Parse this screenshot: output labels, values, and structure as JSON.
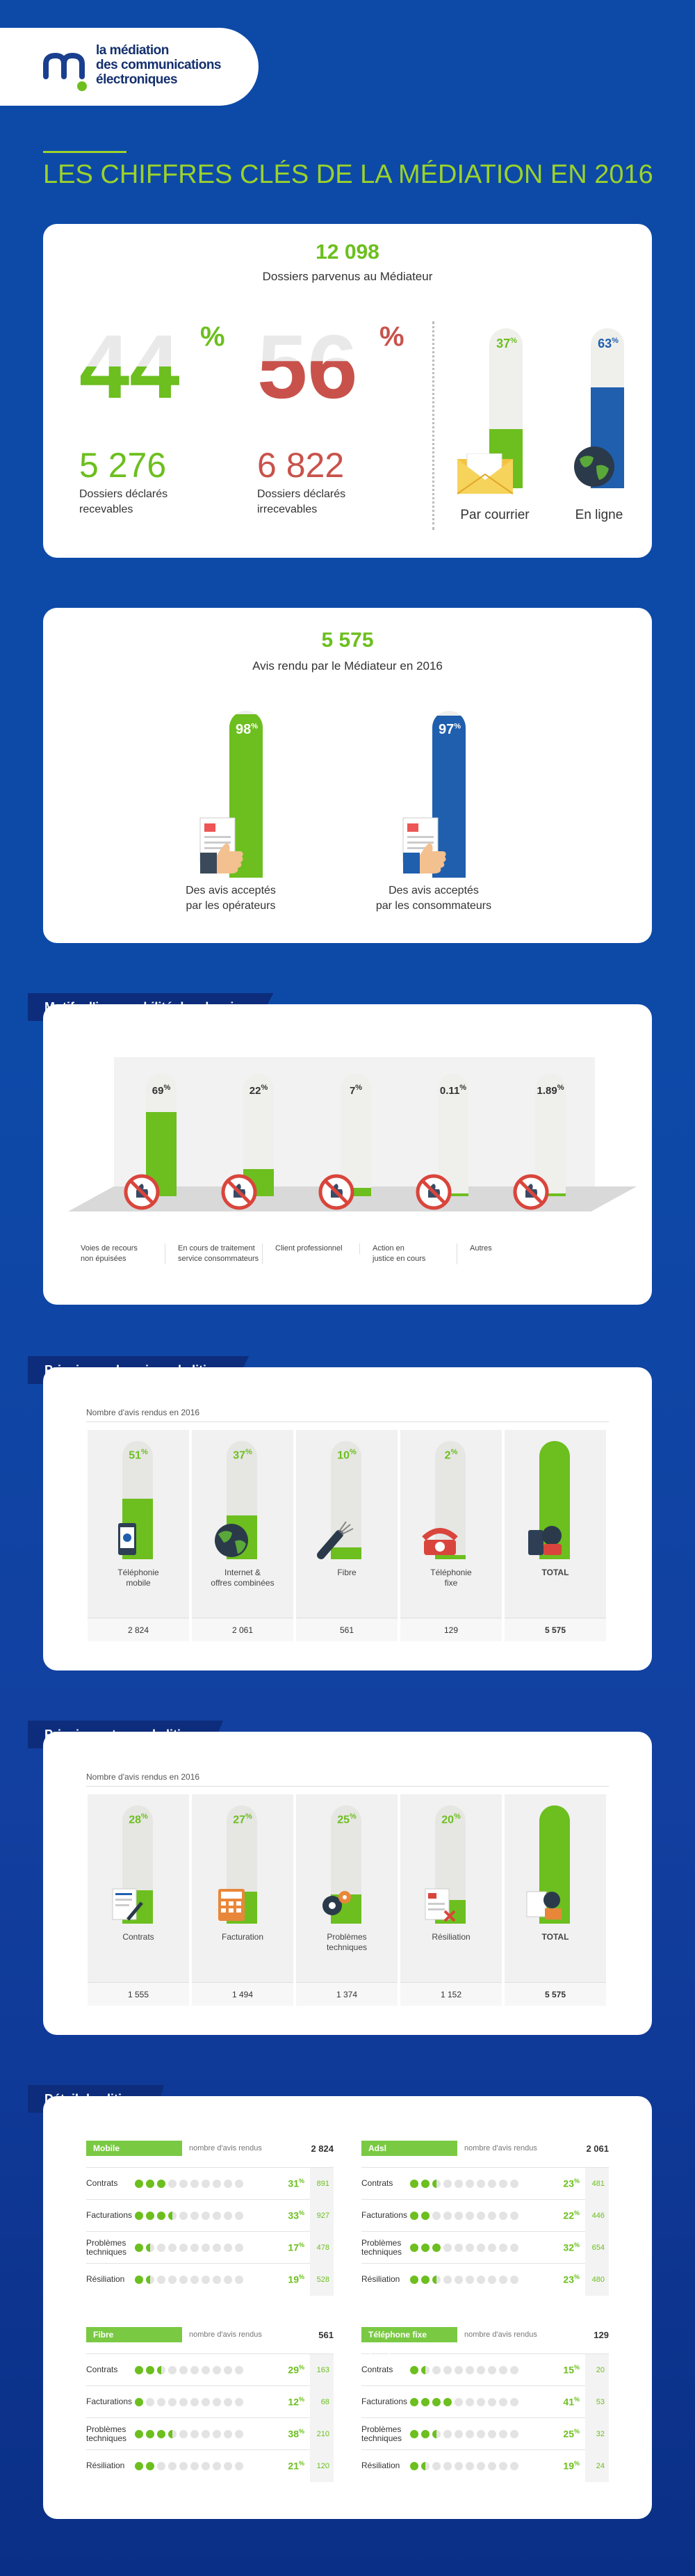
{
  "logo": {
    "lines": [
      "la médiation",
      "des communications",
      "électroniques"
    ]
  },
  "title": "LES CHIFFRES CLÉS DE LA MÉDIATION EN 2016",
  "card1": {
    "total": "12 098",
    "total_label": "Dossiers parvenus au Médiateur",
    "left_pct": "44",
    "left_count": "5 276",
    "left_label": [
      "Dossiers déclarés",
      "recevables"
    ],
    "right_pct": "56",
    "right_count": "6 822",
    "right_label": [
      "Dossiers déclarés",
      "irrecevables"
    ],
    "channels": [
      {
        "label": "Par courrier",
        "pct": "37",
        "value": 0.37,
        "icon": "mail-icon"
      },
      {
        "label": "En ligne",
        "pct": "63",
        "value": 0.63,
        "icon": "globe-icon"
      }
    ]
  },
  "card2": {
    "total": "5 575",
    "total_label": "Avis rendu par le Médiateur en 2016",
    "items": [
      {
        "pct": "98",
        "value": 0.98,
        "label": [
          "Des avis acceptés",
          "par les opérateurs"
        ],
        "color": "#6cbf1e"
      },
      {
        "pct": "97",
        "value": 0.97,
        "label": [
          "Des avis acceptés",
          "par les consommateurs"
        ],
        "color": "#1f5fae"
      }
    ]
  },
  "section_irrecevabilite": {
    "ribbon": "Motifs d'irrecevabilité des dossiers",
    "items": [
      {
        "pct": "69",
        "value": 0.69,
        "label": [
          "Voies de recours",
          "non épuisées"
        ]
      },
      {
        "pct": "22",
        "value": 0.22,
        "label": [
          "En cours de traitement",
          "service consommateurs"
        ]
      },
      {
        "pct": "7",
        "value": 0.07,
        "label": [
          "Client professionnel"
        ]
      },
      {
        "pct": "0.11",
        "value": 0.0011,
        "label": [
          "Action en",
          "justice en cours"
        ]
      },
      {
        "pct": "1.89",
        "value": 0.0189,
        "label": [
          "Autres"
        ]
      }
    ]
  },
  "section_domaines": {
    "ribbon": "Principaux domaines de litiges",
    "subtitle": "Nombre d'avis rendus en 2016",
    "items": [
      {
        "pct": "51",
        "value": 0.51,
        "label": [
          "Téléphonie",
          "mobile"
        ],
        "count": "2 824",
        "icon": "mobile-phone-icon"
      },
      {
        "pct": "37",
        "value": 0.37,
        "label": [
          "Internet &",
          "offres combinées"
        ],
        "count": "2 061",
        "icon": "globe-icon"
      },
      {
        "pct": "10",
        "value": 0.1,
        "label": [
          "Fibre"
        ],
        "count": "561",
        "icon": "fiber-cable-icon"
      },
      {
        "pct": "2",
        "value": 0.02,
        "label": [
          "Téléphonie",
          "fixe"
        ],
        "count": "129",
        "icon": "landline-phone-icon"
      },
      {
        "pct": "100",
        "value": 1.0,
        "label": [
          "TOTAL"
        ],
        "count": "5 575",
        "icon": "devices-icon"
      }
    ]
  },
  "section_types": {
    "ribbon": "Principaux types de litiges",
    "subtitle": "Nombre d'avis rendus en 2016",
    "items": [
      {
        "pct": "28",
        "value": 0.28,
        "label": [
          "Contrats"
        ],
        "count": "1 555",
        "icon": "contract-icon"
      },
      {
        "pct": "27",
        "value": 0.27,
        "label": [
          "Facturation"
        ],
        "count": "1 494",
        "icon": "calculator-icon"
      },
      {
        "pct": "25",
        "value": 0.25,
        "label": [
          "Problèmes",
          "techniques"
        ],
        "count": "1 374",
        "icon": "gears-icon"
      },
      {
        "pct": "20",
        "value": 0.2,
        "label": [
          "Résiliation"
        ],
        "count": "1 152",
        "icon": "termination-icon"
      },
      {
        "pct": "100",
        "value": 1.0,
        "label": [
          "TOTAL"
        ],
        "count": "5 575",
        "icon": "documents-icon"
      }
    ]
  },
  "section_detail": {
    "ribbon": "Détail des litiges",
    "panels": [
      {
        "name": "Mobile",
        "sub": "nombre d'avis rendus",
        "total": "2 824",
        "rows": [
          {
            "label": [
              "Contrats"
            ],
            "pct": "31",
            "value": 0.31,
            "count": "891"
          },
          {
            "label": [
              "Facturations"
            ],
            "pct": "33",
            "value": 0.33,
            "count": "927"
          },
          {
            "label": [
              "Problèmes",
              "techniques"
            ],
            "pct": "17",
            "value": 0.17,
            "count": "478"
          },
          {
            "label": [
              "Résiliation"
            ],
            "pct": "19",
            "value": 0.19,
            "count": "528"
          }
        ]
      },
      {
        "name": "Adsl",
        "sub": "nombre d'avis rendus",
        "total": "2 061",
        "rows": [
          {
            "label": [
              "Contrats"
            ],
            "pct": "23",
            "value": 0.23,
            "count": "481"
          },
          {
            "label": [
              "Facturations"
            ],
            "pct": "22",
            "value": 0.22,
            "count": "446"
          },
          {
            "label": [
              "Problèmes",
              "techniques"
            ],
            "pct": "32",
            "value": 0.32,
            "count": "654"
          },
          {
            "label": [
              "Résiliation"
            ],
            "pct": "23",
            "value": 0.23,
            "count": "480"
          }
        ]
      },
      {
        "name": "Fibre",
        "sub": "nombre d'avis rendus",
        "total": "561",
        "rows": [
          {
            "label": [
              "Contrats"
            ],
            "pct": "29",
            "value": 0.29,
            "count": "163"
          },
          {
            "label": [
              "Facturations"
            ],
            "pct": "12",
            "value": 0.12,
            "count": "68"
          },
          {
            "label": [
              "Problèmes",
              "techniques"
            ],
            "pct": "38",
            "value": 0.38,
            "count": "210"
          },
          {
            "label": [
              "Résiliation"
            ],
            "pct": "21",
            "value": 0.21,
            "count": "120"
          }
        ]
      },
      {
        "name": "Téléphone fixe (RTC)",
        "sub": "nombre d'avis rendus",
        "total": "129",
        "rows": [
          {
            "label": [
              "Contrats"
            ],
            "pct": "15",
            "value": 0.15,
            "count": "20"
          },
          {
            "label": [
              "Facturations"
            ],
            "pct": "41",
            "value": 0.41,
            "count": "53"
          },
          {
            "label": [
              "Problèmes",
              "techniques"
            ],
            "pct": "25",
            "value": 0.25,
            "count": "32"
          },
          {
            "label": [
              "Résiliation"
            ],
            "pct": "19",
            "value": 0.19,
            "count": "24"
          }
        ]
      }
    ]
  },
  "colors": {
    "green": "#6cbf1e",
    "red": "#c8524b",
    "blue": "#1f5fae",
    "navy": "#0d2d7c",
    "bar_bg": "#efefec"
  }
}
